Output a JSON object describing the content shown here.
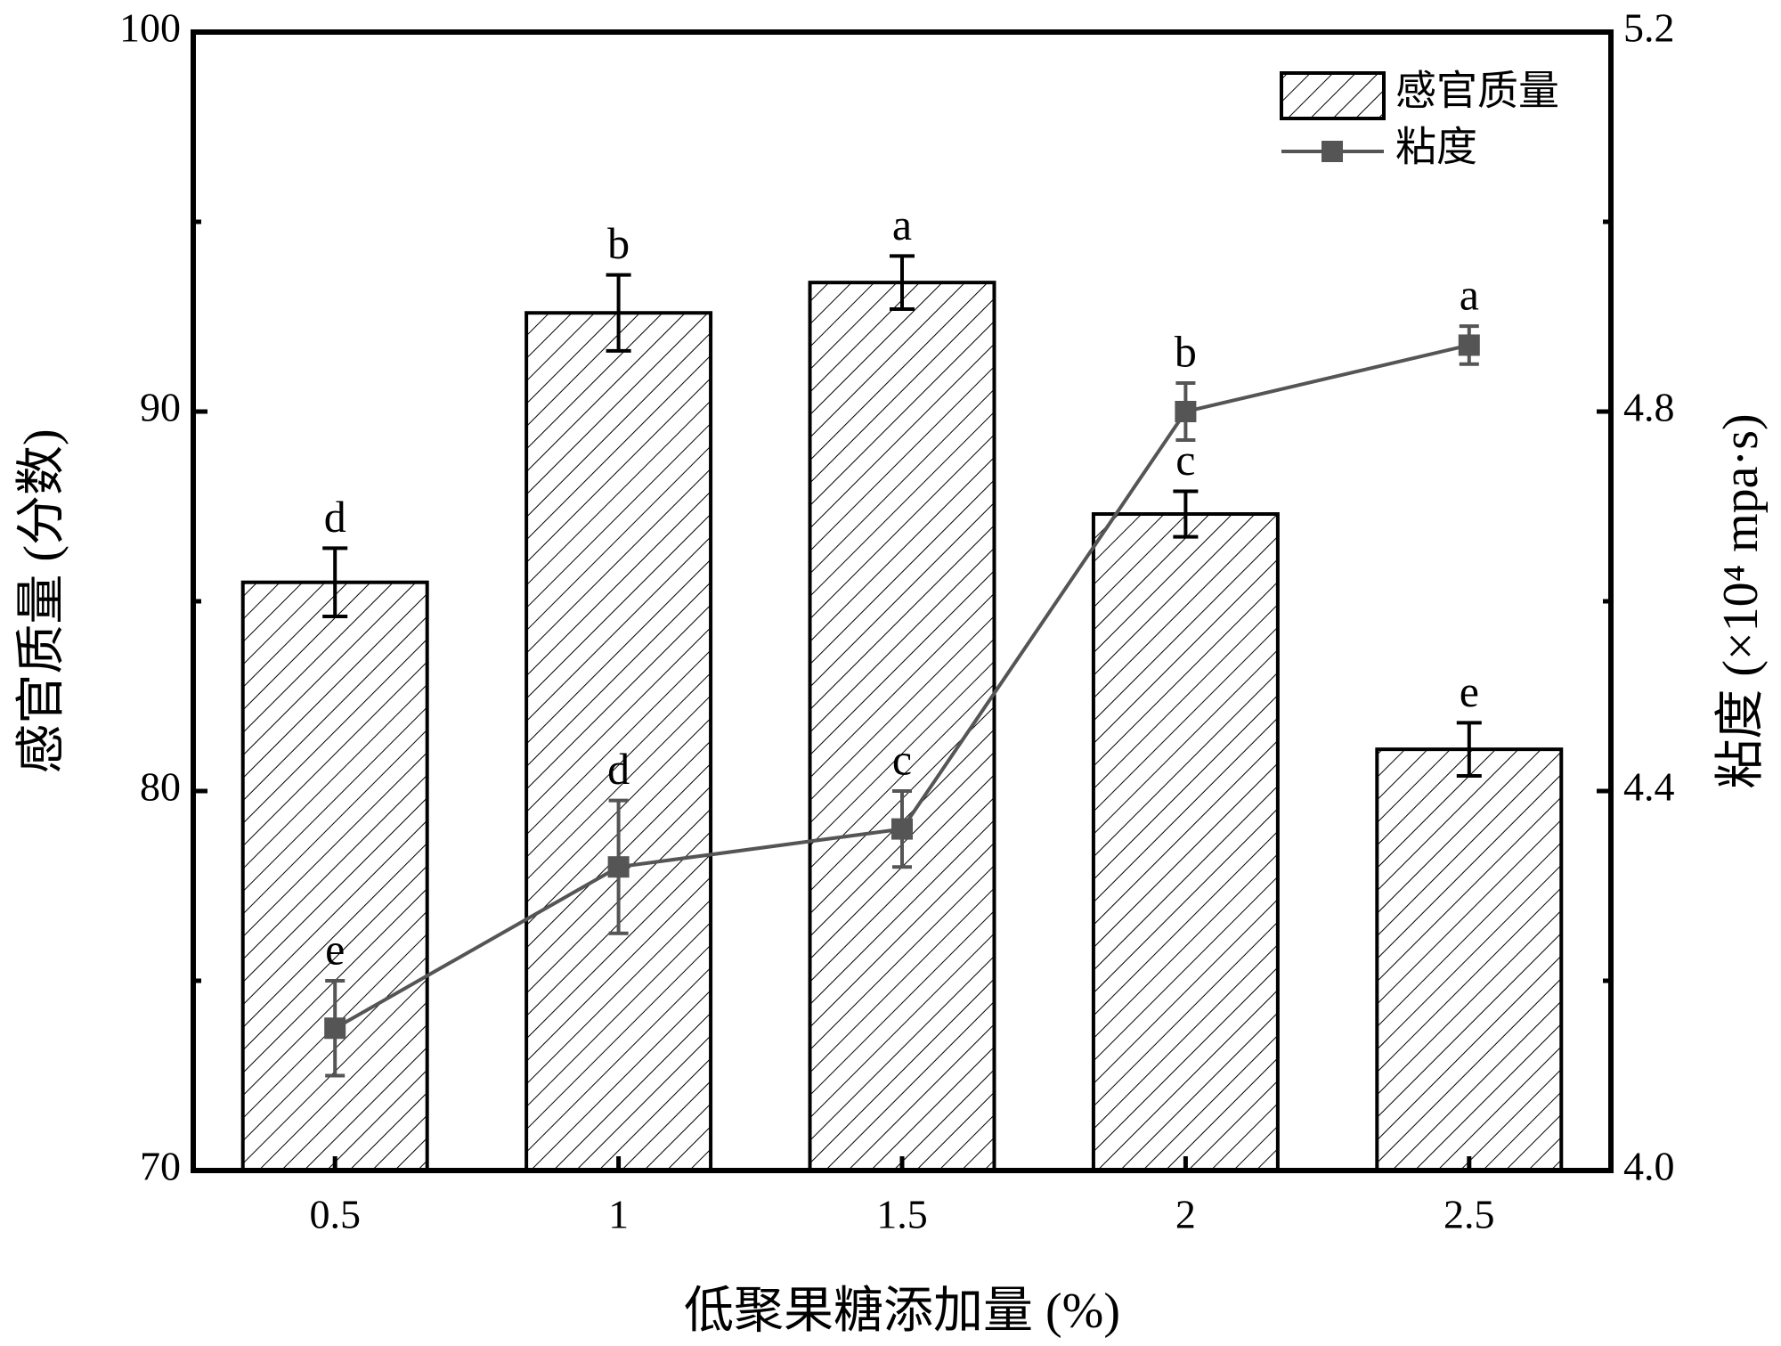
{
  "chart_data": {
    "type": "bar",
    "categories": [
      "0.5",
      "1",
      "1.5",
      "2",
      "2.5"
    ],
    "x_label": "低聚果糖添加量 (%)",
    "y_label": "感官质量 (分数)",
    "y2_label": "粘度 (×10⁴ mpa·s)",
    "ylim": [
      70,
      100
    ],
    "yticks": [
      70,
      80,
      90,
      100
    ],
    "yminorticks": [
      75,
      85,
      95
    ],
    "y2lim": [
      4,
      5.2
    ],
    "y2ticks": [
      {
        "value": 4,
        "label": "4.0"
      },
      4.4,
      4.8,
      5.2
    ],
    "y2minorticks": [
      4.2,
      4.6,
      5
    ],
    "legend": "upper right",
    "series": [
      {
        "name": "感官质量",
        "type": "bar",
        "color": "#000000",
        "values": [
          85.5,
          92.6,
          93.4,
          87.3,
          81.1
        ],
        "errors": [
          0.9,
          1.0,
          0.7,
          0.6,
          0.7
        ],
        "letters": [
          "d",
          "b",
          "a",
          "c",
          "e"
        ]
      },
      {
        "name": "粘度",
        "type": "line",
        "axis": "y2",
        "color": "#555555",
        "values": [
          4.15,
          4.32,
          4.36,
          4.8,
          4.87
        ],
        "errors": [
          0.05,
          0.07,
          0.04,
          0.03,
          0.02
        ],
        "letters": [
          "e",
          "d",
          "c",
          "b",
          "a"
        ]
      }
    ]
  }
}
